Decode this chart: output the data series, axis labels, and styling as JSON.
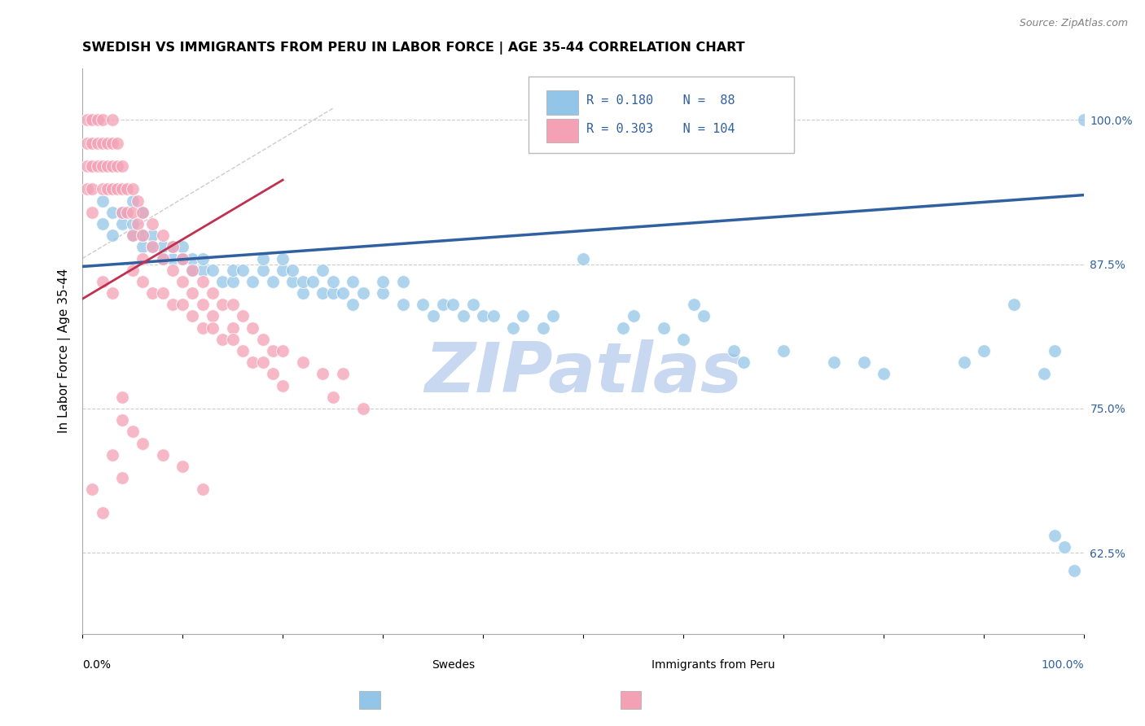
{
  "title": "SWEDISH VS IMMIGRANTS FROM PERU IN LABOR FORCE | AGE 35-44 CORRELATION CHART",
  "source": "Source: ZipAtlas.com",
  "ylabel": "In Labor Force | Age 35-44",
  "legend_label_blue": "Swedes",
  "legend_label_pink": "Immigrants from Peru",
  "r_blue": 0.18,
  "n_blue": 88,
  "r_pink": 0.303,
  "n_pink": 104,
  "color_blue": "#92C5E8",
  "color_pink": "#F4A0B5",
  "trend_blue": "#3060A0",
  "trend_pink": "#C03050",
  "watermark": "ZIPatlas",
  "watermark_color": "#C8D8F0",
  "right_yticks": [
    0.625,
    0.75,
    0.875,
    1.0
  ],
  "right_yticklabels": [
    "62.5%",
    "75.0%",
    "87.5%",
    "100.0%"
  ],
  "xmin": 0.0,
  "xmax": 1.0,
  "ymin": 0.555,
  "ymax": 1.045,
  "blue_trend_x0": 0.0,
  "blue_trend_y0": 0.873,
  "blue_trend_x1": 1.0,
  "blue_trend_y1": 0.935,
  "pink_trend_x0": 0.0,
  "pink_trend_y0": 0.845,
  "pink_trend_x1": 0.2,
  "pink_trend_y1": 0.948,
  "blue_dots": [
    [
      0.02,
      0.91
    ],
    [
      0.02,
      0.93
    ],
    [
      0.03,
      0.92
    ],
    [
      0.03,
      0.9
    ],
    [
      0.04,
      0.91
    ],
    [
      0.04,
      0.92
    ],
    [
      0.05,
      0.9
    ],
    [
      0.05,
      0.91
    ],
    [
      0.05,
      0.93
    ],
    [
      0.06,
      0.89
    ],
    [
      0.06,
      0.9
    ],
    [
      0.06,
      0.92
    ],
    [
      0.07,
      0.89
    ],
    [
      0.07,
      0.9
    ],
    [
      0.08,
      0.88
    ],
    [
      0.08,
      0.89
    ],
    [
      0.09,
      0.88
    ],
    [
      0.09,
      0.89
    ],
    [
      0.1,
      0.88
    ],
    [
      0.1,
      0.89
    ],
    [
      0.11,
      0.87
    ],
    [
      0.11,
      0.88
    ],
    [
      0.12,
      0.87
    ],
    [
      0.12,
      0.88
    ],
    [
      0.13,
      0.87
    ],
    [
      0.14,
      0.86
    ],
    [
      0.15,
      0.86
    ],
    [
      0.15,
      0.87
    ],
    [
      0.16,
      0.87
    ],
    [
      0.17,
      0.86
    ],
    [
      0.18,
      0.87
    ],
    [
      0.18,
      0.88
    ],
    [
      0.19,
      0.86
    ],
    [
      0.2,
      0.87
    ],
    [
      0.2,
      0.88
    ],
    [
      0.21,
      0.86
    ],
    [
      0.21,
      0.87
    ],
    [
      0.22,
      0.85
    ],
    [
      0.22,
      0.86
    ],
    [
      0.23,
      0.86
    ],
    [
      0.24,
      0.85
    ],
    [
      0.24,
      0.87
    ],
    [
      0.25,
      0.85
    ],
    [
      0.25,
      0.86
    ],
    [
      0.26,
      0.85
    ],
    [
      0.27,
      0.84
    ],
    [
      0.27,
      0.86
    ],
    [
      0.28,
      0.85
    ],
    [
      0.3,
      0.85
    ],
    [
      0.3,
      0.86
    ],
    [
      0.32,
      0.84
    ],
    [
      0.32,
      0.86
    ],
    [
      0.34,
      0.84
    ],
    [
      0.35,
      0.83
    ],
    [
      0.36,
      0.84
    ],
    [
      0.37,
      0.84
    ],
    [
      0.38,
      0.83
    ],
    [
      0.39,
      0.84
    ],
    [
      0.4,
      0.83
    ],
    [
      0.41,
      0.83
    ],
    [
      0.43,
      0.82
    ],
    [
      0.44,
      0.83
    ],
    [
      0.46,
      0.82
    ],
    [
      0.47,
      0.83
    ],
    [
      0.5,
      0.88
    ],
    [
      0.54,
      0.82
    ],
    [
      0.55,
      0.83
    ],
    [
      0.58,
      0.82
    ],
    [
      0.6,
      0.81
    ],
    [
      0.61,
      0.84
    ],
    [
      0.62,
      0.83
    ],
    [
      0.65,
      0.8
    ],
    [
      0.66,
      0.79
    ],
    [
      0.7,
      0.8
    ],
    [
      0.75,
      0.79
    ],
    [
      0.78,
      0.79
    ],
    [
      0.8,
      0.78
    ],
    [
      0.88,
      0.79
    ],
    [
      0.9,
      0.8
    ],
    [
      0.93,
      0.84
    ],
    [
      0.96,
      0.78
    ],
    [
      0.97,
      0.8
    ],
    [
      0.97,
      0.64
    ],
    [
      0.98,
      0.63
    ],
    [
      0.99,
      0.61
    ],
    [
      1.0,
      1.0
    ]
  ],
  "pink_dots": [
    [
      0.005,
      1.0
    ],
    [
      0.005,
      0.98
    ],
    [
      0.005,
      0.96
    ],
    [
      0.005,
      0.94
    ],
    [
      0.01,
      1.0
    ],
    [
      0.01,
      0.98
    ],
    [
      0.01,
      0.96
    ],
    [
      0.01,
      0.94
    ],
    [
      0.01,
      0.92
    ],
    [
      0.015,
      1.0
    ],
    [
      0.015,
      0.98
    ],
    [
      0.015,
      0.96
    ],
    [
      0.02,
      1.0
    ],
    [
      0.02,
      0.98
    ],
    [
      0.02,
      0.96
    ],
    [
      0.02,
      0.94
    ],
    [
      0.025,
      0.98
    ],
    [
      0.025,
      0.96
    ],
    [
      0.025,
      0.94
    ],
    [
      0.03,
      1.0
    ],
    [
      0.03,
      0.98
    ],
    [
      0.03,
      0.96
    ],
    [
      0.03,
      0.94
    ],
    [
      0.035,
      0.98
    ],
    [
      0.035,
      0.96
    ],
    [
      0.035,
      0.94
    ],
    [
      0.04,
      0.96
    ],
    [
      0.04,
      0.94
    ],
    [
      0.04,
      0.92
    ],
    [
      0.045,
      0.94
    ],
    [
      0.045,
      0.92
    ],
    [
      0.05,
      0.94
    ],
    [
      0.05,
      0.92
    ],
    [
      0.05,
      0.9
    ],
    [
      0.055,
      0.93
    ],
    [
      0.055,
      0.91
    ],
    [
      0.06,
      0.92
    ],
    [
      0.06,
      0.9
    ],
    [
      0.06,
      0.88
    ],
    [
      0.07,
      0.91
    ],
    [
      0.07,
      0.89
    ],
    [
      0.08,
      0.9
    ],
    [
      0.08,
      0.88
    ],
    [
      0.09,
      0.89
    ],
    [
      0.09,
      0.87
    ],
    [
      0.1,
      0.88
    ],
    [
      0.1,
      0.86
    ],
    [
      0.11,
      0.87
    ],
    [
      0.11,
      0.85
    ],
    [
      0.12,
      0.86
    ],
    [
      0.12,
      0.84
    ],
    [
      0.13,
      0.85
    ],
    [
      0.13,
      0.83
    ],
    [
      0.14,
      0.84
    ],
    [
      0.15,
      0.84
    ],
    [
      0.15,
      0.82
    ],
    [
      0.16,
      0.83
    ],
    [
      0.17,
      0.82
    ],
    [
      0.18,
      0.81
    ],
    [
      0.19,
      0.8
    ],
    [
      0.2,
      0.8
    ],
    [
      0.22,
      0.79
    ],
    [
      0.24,
      0.78
    ],
    [
      0.26,
      0.78
    ],
    [
      0.02,
      0.86
    ],
    [
      0.03,
      0.85
    ],
    [
      0.05,
      0.87
    ],
    [
      0.06,
      0.86
    ],
    [
      0.07,
      0.85
    ],
    [
      0.08,
      0.85
    ],
    [
      0.09,
      0.84
    ],
    [
      0.1,
      0.84
    ],
    [
      0.11,
      0.83
    ],
    [
      0.12,
      0.82
    ],
    [
      0.13,
      0.82
    ],
    [
      0.14,
      0.81
    ],
    [
      0.15,
      0.81
    ],
    [
      0.16,
      0.8
    ],
    [
      0.17,
      0.79
    ],
    [
      0.18,
      0.79
    ],
    [
      0.19,
      0.78
    ],
    [
      0.2,
      0.77
    ],
    [
      0.25,
      0.76
    ],
    [
      0.28,
      0.75
    ],
    [
      0.04,
      0.76
    ],
    [
      0.04,
      0.74
    ],
    [
      0.05,
      0.73
    ],
    [
      0.06,
      0.72
    ],
    [
      0.08,
      0.71
    ],
    [
      0.1,
      0.7
    ],
    [
      0.12,
      0.68
    ],
    [
      0.01,
      0.68
    ],
    [
      0.02,
      0.66
    ],
    [
      0.03,
      0.71
    ],
    [
      0.04,
      0.69
    ]
  ]
}
